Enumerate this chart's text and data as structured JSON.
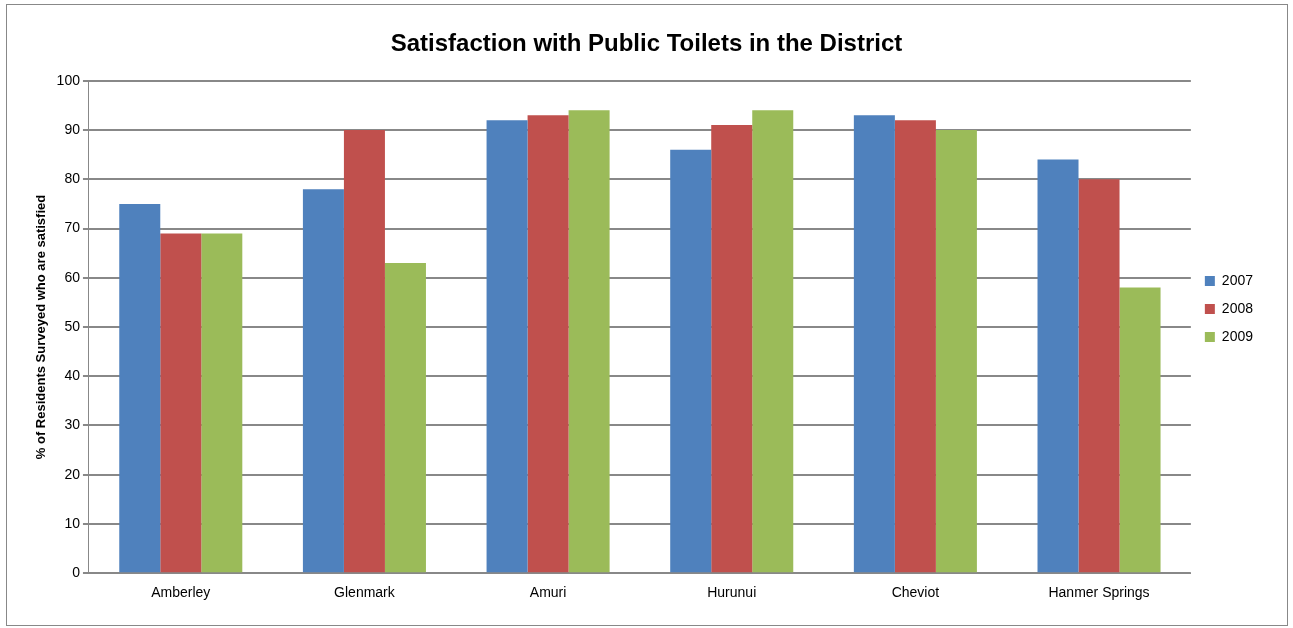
{
  "chart_data": {
    "type": "bar",
    "title": "Satisfaction with Public Toilets in the District",
    "ylabel": "% of Residents Surveyed who are satisfied",
    "categories": [
      "Amberley",
      "Glenmark",
      "Amuri",
      "Hurunui",
      "Cheviot",
      "Hanmer Springs"
    ],
    "series": [
      {
        "name": "2007",
        "color": "#4f81bd",
        "values": [
          75,
          78,
          92,
          86,
          93,
          84
        ]
      },
      {
        "name": "2008",
        "color": "#c0504d",
        "values": [
          69,
          90,
          93,
          91,
          92,
          80
        ]
      },
      {
        "name": "2009",
        "color": "#9bbb59",
        "values": [
          69,
          63,
          94,
          94,
          90,
          58
        ]
      }
    ],
    "ylim": [
      0,
      100
    ],
    "yticks": [
      0,
      10,
      20,
      30,
      40,
      50,
      60,
      70,
      80,
      90,
      100
    ],
    "grid": "y",
    "legend": "right"
  }
}
